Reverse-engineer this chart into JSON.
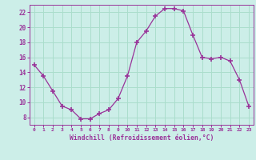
{
  "x": [
    0,
    1,
    2,
    3,
    4,
    5,
    6,
    7,
    8,
    9,
    10,
    11,
    12,
    13,
    14,
    15,
    16,
    17,
    18,
    19,
    20,
    21,
    22,
    23
  ],
  "y": [
    15,
    13.5,
    11.5,
    9.5,
    9,
    7.8,
    7.8,
    8.5,
    9,
    10.5,
    13.5,
    18,
    19.5,
    21.5,
    22.5,
    22.5,
    22.2,
    19,
    16,
    15.8,
    16,
    15.5,
    13,
    9.5
  ],
  "line_color": "#993399",
  "marker": "+",
  "marker_size": 4,
  "bg_color": "#cceee8",
  "grid_color": "#aaddcc",
  "xlabel": "Windchill (Refroidissement éolien,°C)",
  "xlabel_color": "#993399",
  "tick_color": "#993399",
  "ylim": [
    7,
    23
  ],
  "xlim": [
    -0.5,
    23.5
  ],
  "yticks": [
    8,
    10,
    12,
    14,
    16,
    18,
    20,
    22
  ],
  "xticks": [
    0,
    1,
    2,
    3,
    4,
    5,
    6,
    7,
    8,
    9,
    10,
    11,
    12,
    13,
    14,
    15,
    16,
    17,
    18,
    19,
    20,
    21,
    22,
    23
  ]
}
